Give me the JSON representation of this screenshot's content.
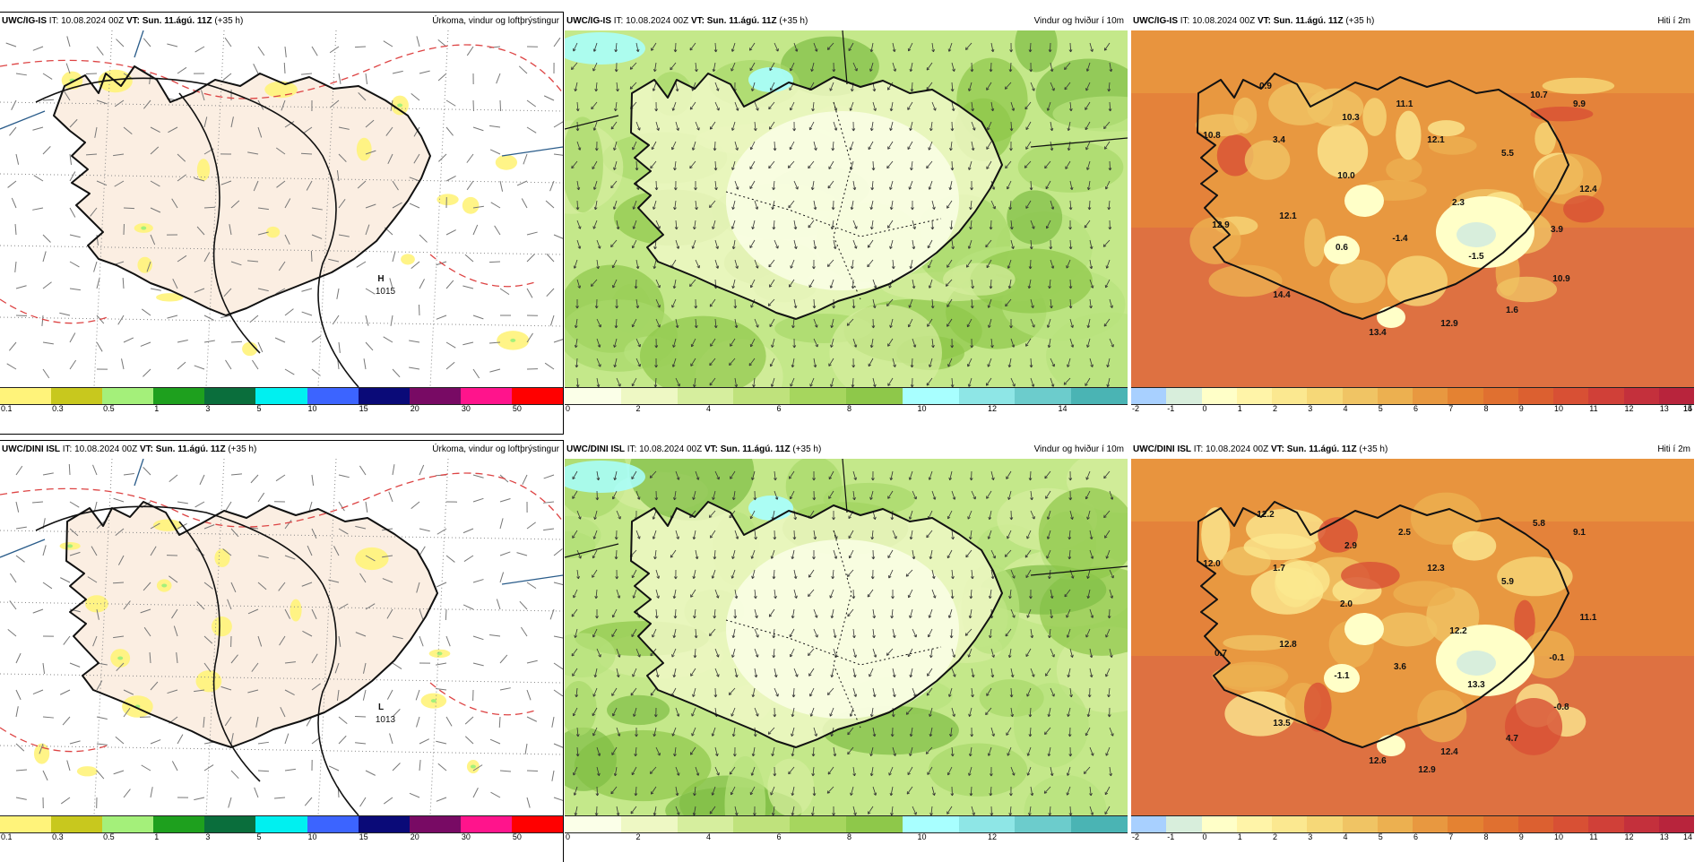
{
  "rows": [
    {
      "model": "UWC/IG-IS",
      "panels": [
        {
          "field": "Úrkoma, vindur og loftþrýstingur",
          "type": "precip",
          "pressure_labels": [
            {
              "kind": "H",
              "value": "1015"
            }
          ]
        },
        {
          "field": "Vindur og hviður í 10m",
          "type": "wind"
        },
        {
          "field": "Hiti í 2m",
          "type": "temp",
          "values": [
            "0.9",
            "10.7",
            "9.9",
            "10.3",
            "11.1",
            "10.8",
            "3.4",
            "12.1",
            "5.5",
            "10.0",
            "12.4",
            "2.3",
            "12.1",
            "12.9",
            "3.9",
            "0.6",
            "-1.4",
            "-1.5",
            "10.9",
            "14.4",
            "1.6",
            "13.4",
            "12.9"
          ]
        }
      ]
    },
    {
      "model": "UWC/DINI ISL",
      "panels": [
        {
          "field": "Úrkoma, vindur og loftþrýstingur",
          "type": "precip",
          "pressure_labels": [
            {
              "kind": "L",
              "value": "1013"
            }
          ]
        },
        {
          "field": "Vindur og hviður í 10m",
          "type": "wind"
        },
        {
          "field": "Hiti í 2m",
          "type": "temp",
          "values": [
            "12.2",
            "5.8",
            "9.1",
            "2.9",
            "2.5",
            "12.0",
            "1.7",
            "12.3",
            "5.9",
            "2.0",
            "11.1",
            "12.2",
            "12.8",
            "0.7",
            "-0.1",
            "-1.1",
            "3.6",
            "13.3",
            "-0.8",
            "13.5",
            "4.7",
            "12.6",
            "12.4",
            "12.9"
          ]
        }
      ]
    }
  ],
  "header": {
    "it_label": "IT:",
    "it_value": "10.08.2024 00Z",
    "vt_label": "VT:",
    "vt_value": "Sun. 11.ágú. 11Z",
    "lead": "(+35 h)"
  },
  "scales": {
    "precip": {
      "colors": [
        "#fff37a",
        "#c8c81e",
        "#a4f07a",
        "#1ea01e",
        "#0a6e3c",
        "#00f0f0",
        "#3c64ff",
        "#0a0a78",
        "#780a64",
        "#ff148c",
        "#ff0000"
      ],
      "ticks": [
        "0.1",
        "0.3",
        "0.5",
        "1",
        "3",
        "5",
        "10",
        "15",
        "20",
        "30",
        "50"
      ]
    },
    "wind_top": {
      "colors": [
        "#fbffe8",
        "#eef8c4",
        "#d6ee9e",
        "#bfe27c",
        "#a6d65e",
        "#8ec84a",
        "#a8ffff",
        "#8ee6e6",
        "#6ccccc",
        "#4ab4b4"
      ],
      "ticks": [
        "0",
        "2",
        "4",
        "6",
        "8",
        "10",
        "12",
        "14"
      ]
    },
    "wind_bottom": {
      "colors": [
        "#fbffe8",
        "#eef8c4",
        "#d6ee9e",
        "#bfe27c",
        "#a6d65e",
        "#8ec84a",
        "#a8ffff",
        "#8ee6e6",
        "#6ccccc",
        "#4ab4b4"
      ],
      "ticks": [
        "0",
        "2",
        "4",
        "6",
        "8",
        "10",
        "12"
      ]
    },
    "temp_top": {
      "colors": [
        "#a8d0ff",
        "#d8eedc",
        "#ffffc8",
        "#fff4a8",
        "#fbe890",
        "#f6d878",
        "#f0c464",
        "#ecb050",
        "#e89840",
        "#e48232",
        "#e07030",
        "#dc6030",
        "#d85034",
        "#d04038",
        "#c4303c",
        "#b8243c"
      ],
      "ticks": [
        "-2",
        "-1",
        "0",
        "1",
        "2",
        "3",
        "4",
        "5",
        "6",
        "7",
        "8",
        "9",
        "10",
        "11",
        "12",
        "13",
        "14",
        "15"
      ]
    },
    "temp_bottom": {
      "colors": [
        "#a8d0ff",
        "#d8eedc",
        "#ffffc8",
        "#fff4a8",
        "#fbe890",
        "#f6d878",
        "#f0c464",
        "#ecb050",
        "#e89840",
        "#e48232",
        "#e07030",
        "#dc6030",
        "#d85034",
        "#d04038",
        "#c4303c",
        "#b8243c"
      ],
      "ticks": [
        "-2",
        "-1",
        "0",
        "1",
        "2",
        "3",
        "4",
        "5",
        "6",
        "7",
        "8",
        "9",
        "10",
        "11",
        "12",
        "13",
        "14"
      ]
    }
  }
}
